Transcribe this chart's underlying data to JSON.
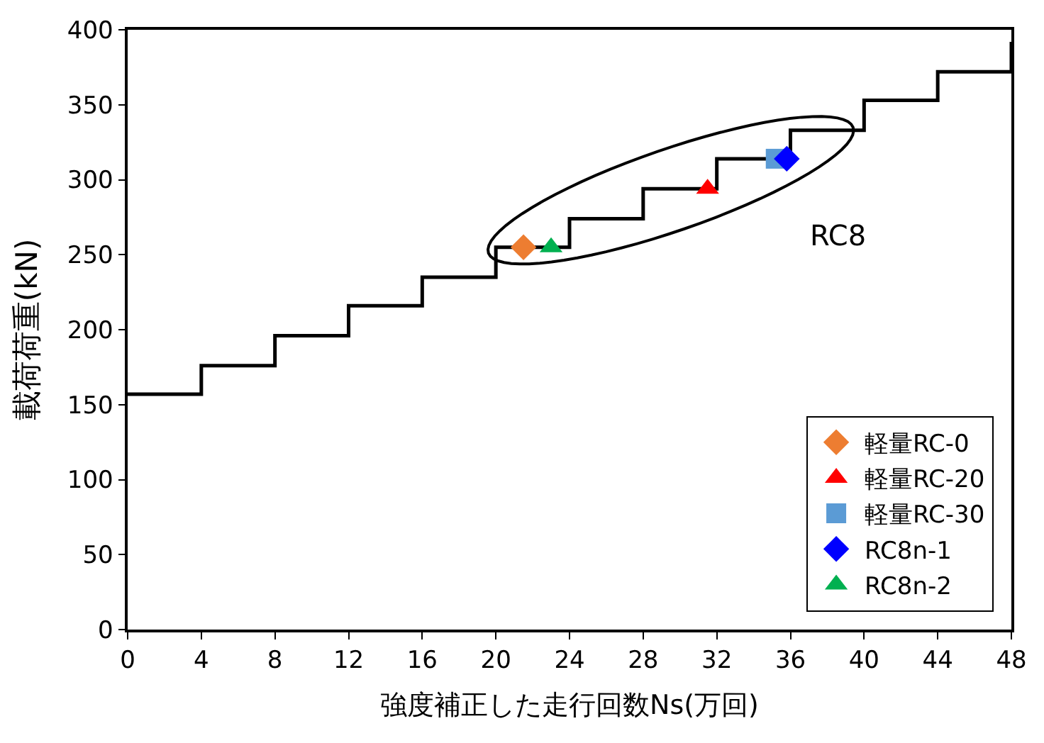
{
  "chart_data": {
    "type": "step",
    "xlabel": "強度補正した走行回数Ns(万回)",
    "ylabel": "載荷荷重(kN)",
    "xlim": [
      0,
      48
    ],
    "xticks": [
      0,
      4,
      8,
      12,
      16,
      20,
      24,
      28,
      32,
      36,
      40,
      44,
      48
    ],
    "ylim": [
      0,
      400
    ],
    "yticks": [
      0,
      50,
      100,
      150,
      200,
      250,
      300,
      350,
      400
    ],
    "legend": "bottom right",
    "annotations": [
      "RC8"
    ],
    "series": [
      {
        "color": "#000000",
        "x": [
          0,
          4,
          8,
          12,
          16,
          20,
          24,
          28,
          32,
          36,
          40,
          44,
          48
        ],
        "values": [
          157,
          176,
          196,
          216,
          235,
          255,
          274,
          294,
          314,
          333,
          353,
          372,
          392
        ]
      },
      {
        "type": "scatter",
        "name": "軽量RC-0",
        "color": "#ed7d31",
        "marker": "diamond",
        "x": [
          21.5
        ],
        "values": [
          255
        ]
      },
      {
        "type": "scatter",
        "name": "軽量RC-20",
        "color": "#ff0000",
        "marker": "triangle",
        "x": [
          31.5
        ],
        "values": [
          294
        ]
      },
      {
        "type": "scatter",
        "name": "軽量RC-30",
        "color": "#5b9bd5",
        "marker": "square",
        "x": [
          35.2
        ],
        "values": [
          314
        ]
      },
      {
        "type": "scatter",
        "name": "RC8n-1",
        "color": "#0000ff",
        "marker": "diamond",
        "x": [
          35.8
        ],
        "values": [
          314
        ]
      },
      {
        "type": "scatter",
        "name": "RC8n-2",
        "color": "#00b050",
        "marker": "triangle",
        "x": [
          23
        ],
        "values": [
          255
        ]
      }
    ]
  }
}
